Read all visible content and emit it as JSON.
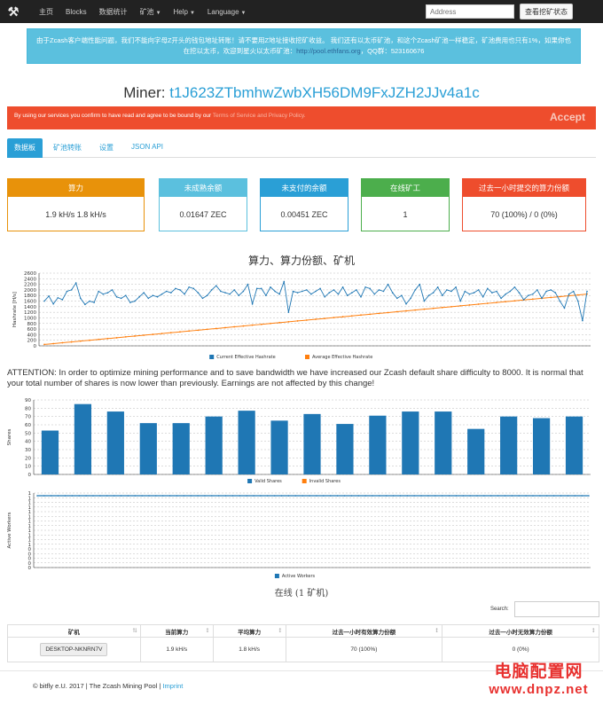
{
  "nav": {
    "items": [
      "主页",
      "Blocks",
      "数据统计",
      "矿池",
      "Help",
      "Language"
    ]
  },
  "search": {
    "placeholder": "Address",
    "button": "查看挖矿状态"
  },
  "notice": {
    "text": "由于Zcash客户端性能问题，我们不能向字母Z开头的钱包地址转账！请不要用Z地址接收挖矿收益。 我们还有以太币矿池，和这个Zcash矿池一样稳定，矿池费用也只有1%，如果你也在挖以太币，欢迎到星火以太币矿池：",
    "link": "http://pool.ethfans.org",
    "qq": "，QQ群：523160676"
  },
  "miner": {
    "label": "Miner:",
    "address": "t1J623ZTbmhwZwbXH56DM9FxJZH2JJv4a1c"
  },
  "cookie": {
    "text": "By using our services you confirm to have read and agree to be bound by our",
    "link": "Terms of Service and Privacy Policy.",
    "accept": "Accept"
  },
  "tabs": [
    "数据板",
    "矿池转账",
    "设置",
    "JSON API"
  ],
  "stats": [
    {
      "label": "算力",
      "value": "1.9 kH/s   1.8 kH/s",
      "color": "#e8920a"
    },
    {
      "label": "未成熟余额",
      "value": "0.01647 ZEC",
      "color": "#5bc0de"
    },
    {
      "label": "未支付的余额",
      "value": "0.00451 ZEC",
      "color": "#2a9fd6"
    },
    {
      "label": "在线矿工",
      "value": "1",
      "color": "#4cae4c"
    },
    {
      "label": "过去一小时提交的算力份额",
      "value": "70 (100%) / 0 (0%)",
      "color": "#ee4d2d"
    }
  ],
  "chart_titles": {
    "hashrate": "算力、算力份额、矿机",
    "online": "在线 (1 矿机)"
  },
  "attention": "ATTENTION: In order to optimize mining performance and to save bandwidth we have increased our Zcash default share difficulty to 8000. It is normal that your total number of shares is now lower than previously. Earnings are not affected by this change!",
  "chart_data": [
    {
      "type": "line",
      "ylabel": "Hashrate [H/s]",
      "ylim": [
        0,
        2600
      ],
      "yticks": [
        0,
        200,
        400,
        600,
        800,
        1000,
        1200,
        1400,
        1600,
        1800,
        2000,
        2200,
        2400,
        2600
      ],
      "series": [
        {
          "name": "Current Effective Hashrate",
          "color": "#1f77b4",
          "values": [
            1600,
            1780,
            1500,
            1720,
            1650,
            1950,
            2000,
            2250,
            1700,
            1480,
            1600,
            1550,
            1950,
            1850,
            1900,
            2000,
            1750,
            1700,
            1800,
            1550,
            1600,
            1750,
            1900,
            1700,
            1800,
            1750,
            1850,
            1950,
            1900,
            2050,
            2000,
            1850,
            2100,
            2050,
            1900,
            1700,
            1800,
            2000,
            2150,
            1950,
            1900,
            1850,
            2000,
            1800,
            1950,
            2200,
            1500,
            2050,
            2050,
            1800,
            2100,
            1950,
            1850,
            2300,
            1200,
            1950,
            1900,
            1950,
            2000,
            1850,
            1950,
            2050,
            1750,
            1900,
            2000,
            1850,
            2100,
            1800,
            1900,
            2000,
            1750,
            2100,
            2050,
            1850,
            2000,
            1950,
            2200,
            1900,
            1700,
            1800,
            1500,
            1700,
            2000,
            2200,
            1600,
            1800,
            1900,
            2100,
            1800,
            2000,
            1950,
            2100,
            1600,
            1950,
            1850,
            1900,
            2000,
            1750,
            2050,
            1900,
            1950,
            1700,
            1850,
            1950,
            2100,
            1900,
            1650,
            1800,
            1850,
            2000,
            1700,
            1950,
            2000,
            1900,
            1600,
            1350,
            1850,
            1950,
            1600,
            900,
            1950
          ]
        },
        {
          "name": "Average Effective Hashrate",
          "color": "#ff7f0e",
          "values": [
            50,
            1850
          ]
        }
      ]
    },
    {
      "type": "bar",
      "ylabel": "Shares",
      "ylim": [
        0,
        90
      ],
      "yticks": [
        0,
        10,
        20,
        30,
        40,
        50,
        60,
        70,
        80,
        90
      ],
      "series": [
        {
          "name": "Valid Shares",
          "color": "#1f77b4",
          "values": [
            53,
            85,
            76,
            62,
            62,
            70,
            77,
            65,
            73,
            61,
            71,
            76,
            76,
            55,
            70,
            68,
            70
          ]
        },
        {
          "name": "Invalid Shares",
          "color": "#ff7f0e",
          "values": [
            0,
            0,
            0,
            0,
            0,
            0,
            0,
            0,
            0,
            0,
            0,
            0,
            0,
            0,
            0,
            0,
            0
          ]
        }
      ]
    },
    {
      "type": "line",
      "ylabel": "Active Workers",
      "ylim": [
        0,
        1
      ],
      "yticks": [
        "0",
        "0",
        "0",
        "0",
        "0",
        "1",
        "1",
        "1",
        "1",
        "1",
        "1",
        "1",
        "1",
        "1",
        "1",
        "1",
        "1"
      ],
      "series": [
        {
          "name": "Active Workers",
          "color": "#1f77b4",
          "values": [
            1
          ]
        }
      ]
    }
  ],
  "table": {
    "search_label": "Search:",
    "headers": [
      "矿机",
      "当前算力",
      "平均算力",
      "过去一小时有效算力份额",
      "过去一小时无效算力份额"
    ],
    "rows": [
      [
        "DESKTOP-NKNRN7V",
        "1.9 kH/s",
        "1.8 kH/s",
        "70 (100%)",
        "0 (0%)"
      ]
    ]
  },
  "footer": {
    "text": "© bitfly e.U. 2017 | The Zcash Mining Pool |",
    "link": "Imprint"
  },
  "watermark": {
    "line1": "电脑配置网",
    "line2": "www.dnpz.net"
  }
}
